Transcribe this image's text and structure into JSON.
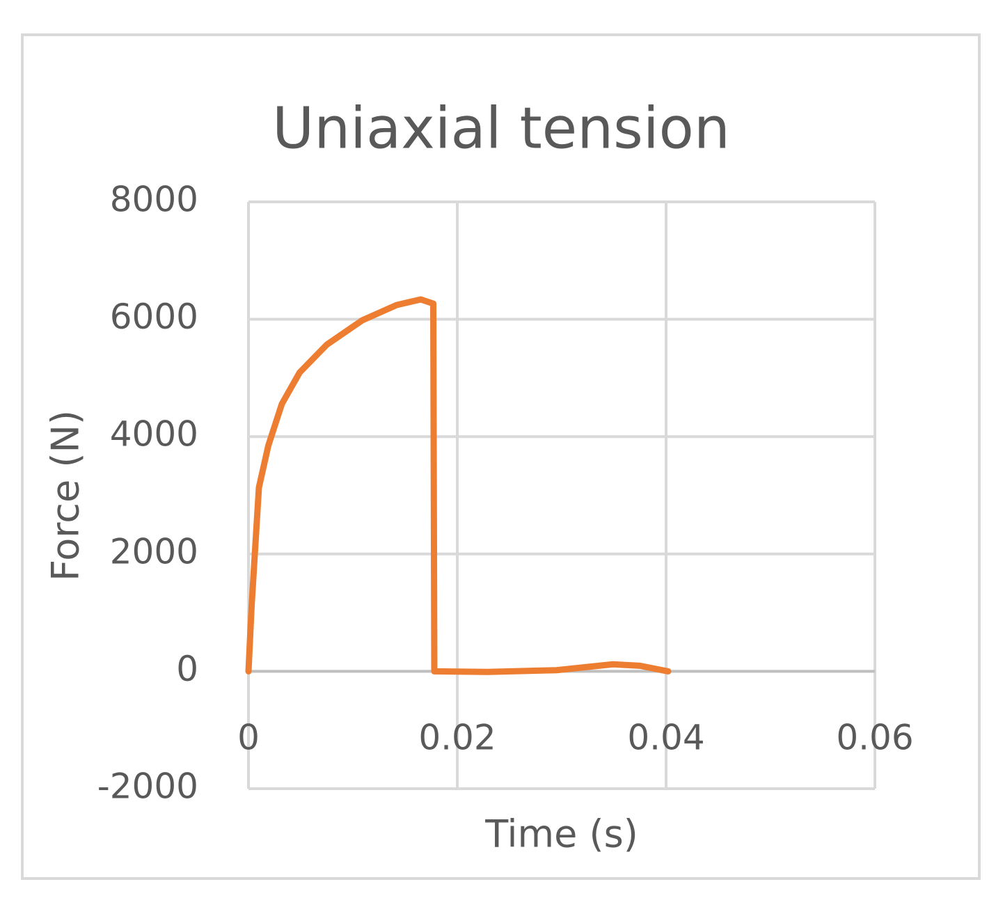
{
  "chart_data": {
    "type": "line",
    "title": "Uniaxial tension",
    "x_label": "Time (s)",
    "y_label": "Force (N)",
    "x": [
      0,
      0.0003,
      0.001,
      0.0019,
      0.0032,
      0.0049,
      0.0075,
      0.0109,
      0.0142,
      0.0165,
      0.0177,
      0.0178,
      0.0229,
      0.0295,
      0.0349,
      0.0375,
      0.0402
    ],
    "series": [
      {
        "color": "#ed7d31",
        "values": [
          0,
          1116,
          3134,
          3846,
          4558,
          5092,
          5567,
          5982,
          6243,
          6338,
          6267,
          0,
          -10,
          20,
          120,
          95,
          0
        ]
      }
    ],
    "xlim": [
      0,
      0.06
    ],
    "xticks": [
      0,
      0.02,
      0.04,
      0.06
    ],
    "ylim": [
      -2000,
      8000
    ],
    "yticks": [
      -2000,
      0,
      2000,
      4000,
      6000,
      8000
    ],
    "grid": true
  }
}
